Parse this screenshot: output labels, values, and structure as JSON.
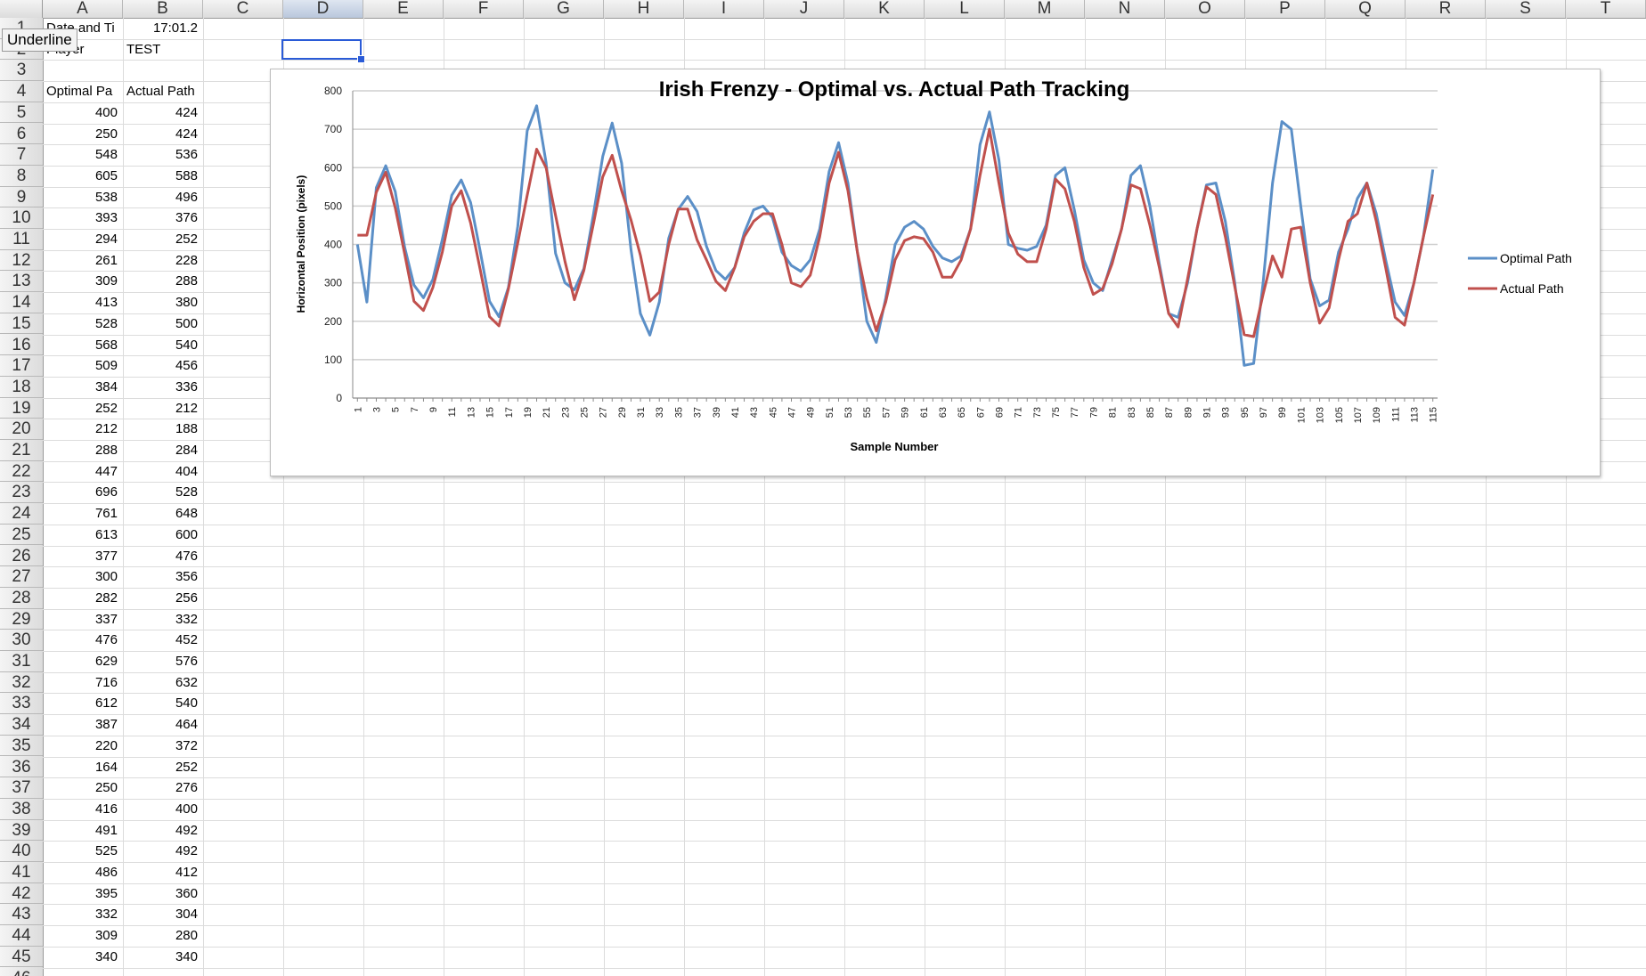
{
  "sheet": {
    "columns": [
      "A",
      "B",
      "C",
      "D",
      "E",
      "F",
      "G",
      "H",
      "I",
      "J",
      "K",
      "L",
      "M",
      "N",
      "O",
      "P",
      "Q",
      "R",
      "S",
      "T"
    ],
    "selected_column": "D",
    "tooltip": "Underline",
    "rows": [
      {
        "num": "1",
        "a": "Date and Ti",
        "b": "17:01.2"
      },
      {
        "num": "2",
        "a": "Player",
        "b": "TEST"
      },
      {
        "num": "3",
        "a": "",
        "b": ""
      },
      {
        "num": "4",
        "a": "Optimal Pa",
        "b": "Actual Path"
      },
      {
        "num": "5",
        "a": "400",
        "b": "424"
      },
      {
        "num": "6",
        "a": "250",
        "b": "424"
      },
      {
        "num": "7",
        "a": "548",
        "b": "536"
      },
      {
        "num": "8",
        "a": "605",
        "b": "588"
      },
      {
        "num": "9",
        "a": "538",
        "b": "496"
      },
      {
        "num": "10",
        "a": "393",
        "b": "376"
      },
      {
        "num": "11",
        "a": "294",
        "b": "252"
      },
      {
        "num": "12",
        "a": "261",
        "b": "228"
      },
      {
        "num": "13",
        "a": "309",
        "b": "288"
      },
      {
        "num": "14",
        "a": "413",
        "b": "380"
      },
      {
        "num": "15",
        "a": "528",
        "b": "500"
      },
      {
        "num": "16",
        "a": "568",
        "b": "540"
      },
      {
        "num": "17",
        "a": "509",
        "b": "456"
      },
      {
        "num": "18",
        "a": "384",
        "b": "336"
      },
      {
        "num": "19",
        "a": "252",
        "b": "212"
      },
      {
        "num": "20",
        "a": "212",
        "b": "188"
      },
      {
        "num": "21",
        "a": "288",
        "b": "284"
      },
      {
        "num": "22",
        "a": "447",
        "b": "404"
      },
      {
        "num": "23",
        "a": "696",
        "b": "528"
      },
      {
        "num": "24",
        "a": "761",
        "b": "648"
      },
      {
        "num": "25",
        "a": "613",
        "b": "600"
      },
      {
        "num": "26",
        "a": "377",
        "b": "476"
      },
      {
        "num": "27",
        "a": "300",
        "b": "356"
      },
      {
        "num": "28",
        "a": "282",
        "b": "256"
      },
      {
        "num": "29",
        "a": "337",
        "b": "332"
      },
      {
        "num": "30",
        "a": "476",
        "b": "452"
      },
      {
        "num": "31",
        "a": "629",
        "b": "576"
      },
      {
        "num": "32",
        "a": "716",
        "b": "632"
      },
      {
        "num": "33",
        "a": "612",
        "b": "540"
      },
      {
        "num": "34",
        "a": "387",
        "b": "464"
      },
      {
        "num": "35",
        "a": "220",
        "b": "372"
      },
      {
        "num": "36",
        "a": "164",
        "b": "252"
      },
      {
        "num": "37",
        "a": "250",
        "b": "276"
      },
      {
        "num": "38",
        "a": "416",
        "b": "400"
      },
      {
        "num": "39",
        "a": "491",
        "b": "492"
      },
      {
        "num": "40",
        "a": "525",
        "b": "492"
      },
      {
        "num": "41",
        "a": "486",
        "b": "412"
      },
      {
        "num": "42",
        "a": "395",
        "b": "360"
      },
      {
        "num": "43",
        "a": "332",
        "b": "304"
      },
      {
        "num": "44",
        "a": "309",
        "b": "280"
      },
      {
        "num": "45",
        "a": "340",
        "b": "340"
      },
      {
        "num": "46",
        "a": "",
        "b": ""
      }
    ]
  },
  "chart_data": {
    "type": "line",
    "title": "Irish Frenzy - Optimal vs. Actual Path Tracking",
    "xlabel": "Sample Number",
    "ylabel": "Horizontal Position (pixels)",
    "ylim": [
      0,
      800
    ],
    "yticks": [
      0,
      100,
      200,
      300,
      400,
      500,
      600,
      700,
      800
    ],
    "x_count": 115,
    "x_tick_step": 2,
    "grid": true,
    "legend": "right",
    "series": [
      {
        "name": "Optimal Path",
        "color": "#5b8fc7",
        "values": [
          400,
          250,
          548,
          605,
          538,
          393,
          294,
          261,
          309,
          413,
          528,
          568,
          509,
          384,
          252,
          212,
          288,
          447,
          696,
          761,
          613,
          377,
          300,
          282,
          337,
          476,
          629,
          716,
          612,
          387,
          220,
          164,
          250,
          416,
          491,
          525,
          486,
          395,
          332,
          309,
          340,
          430,
          490,
          500,
          470,
          380,
          345,
          330,
          360,
          440,
          590,
          665,
          560,
          380,
          200,
          145,
          260,
          400,
          445,
          460,
          440,
          395,
          365,
          355,
          370,
          440,
          660,
          745,
          620,
          400,
          390,
          385,
          395,
          450,
          580,
          600,
          490,
          360,
          300,
          280,
          360,
          440,
          580,
          605,
          500,
          350,
          220,
          210,
          300,
          440,
          555,
          560,
          460,
          300,
          85,
          90,
          300,
          560,
          720,
          700,
          500,
          310,
          240,
          255,
          380,
          440,
          520,
          560,
          480,
          360,
          250,
          215,
          300,
          420,
          595
        ]
      },
      {
        "name": "Actual Path",
        "color": "#c0504d",
        "values": [
          424,
          424,
          536,
          588,
          496,
          376,
          252,
          228,
          288,
          380,
          500,
          540,
          456,
          336,
          212,
          188,
          284,
          404,
          528,
          648,
          600,
          476,
          356,
          256,
          332,
          452,
          576,
          632,
          540,
          464,
          372,
          252,
          276,
          400,
          492,
          492,
          412,
          360,
          304,
          280,
          340,
          420,
          460,
          480,
          480,
          400,
          300,
          290,
          320,
          420,
          560,
          640,
          540,
          380,
          260,
          175,
          250,
          360,
          410,
          420,
          415,
          380,
          315,
          315,
          360,
          440,
          580,
          700,
          560,
          430,
          375,
          355,
          355,
          440,
          570,
          545,
          460,
          340,
          270,
          285,
          350,
          440,
          555,
          545,
          450,
          340,
          220,
          185,
          310,
          440,
          550,
          530,
          420,
          290,
          165,
          160,
          270,
          370,
          315,
          440,
          445,
          300,
          195,
          235,
          360,
          460,
          480,
          560,
          460,
          340,
          210,
          190,
          300,
          420,
          530
        ]
      }
    ]
  }
}
